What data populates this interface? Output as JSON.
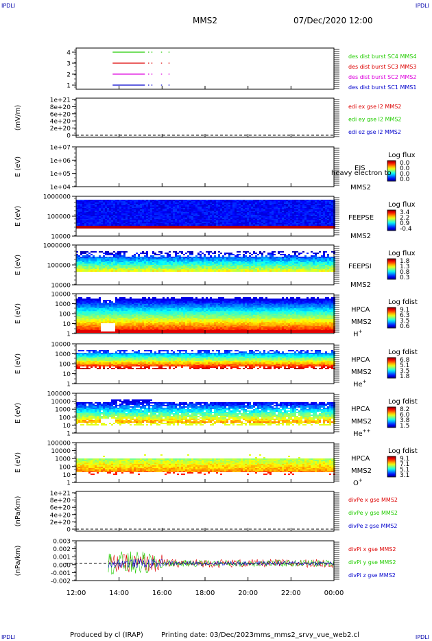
{
  "header": {
    "corner_label": "IPDLI",
    "mission": "MMS2",
    "datetime": "07/Dec/2020 12:00"
  },
  "footer": {
    "produced_by": "Produced by cl (IRAP)",
    "printing_date": "Printing date: 03/Dec/2023",
    "script_name": "mms_mms2_srvy_vue_web2.cl"
  },
  "colors": {
    "cyan_blue": "#0000cc",
    "magenta": "#dd00dd",
    "red": "#dd0000",
    "green": "#22cc00"
  },
  "chart_data": {
    "type": "multi-panel",
    "x_range": [
      "12:00",
      "00:00"
    ],
    "x_ticks": [
      "12:00",
      "14:00",
      "16:00",
      "18:00",
      "20:00",
      "22:00",
      "00:00"
    ],
    "panels": [
      {
        "type": "line",
        "yticks": [
          "4",
          "3",
          "2",
          "1"
        ],
        "ylabel": "",
        "series": [
          {
            "name": "des dist burst SC1 MMS1",
            "color": "#0000cc",
            "level": 1
          },
          {
            "name": "des dist burst SC2 MMS2",
            "color": "#dd00dd",
            "level": 2
          },
          {
            "name": "des dist burst SC3 MMS3",
            "color": "#dd0000",
            "level": 3
          },
          {
            "name": "des dist burst SC4 MMS4",
            "color": "#22cc00",
            "level": 4
          }
        ],
        "segments_hours": [
          [
            13.7,
            15.2
          ],
          [
            15.35,
            15.4
          ],
          [
            15.5,
            15.55
          ],
          [
            15.95,
            16.0
          ],
          [
            16.3,
            16.35
          ]
        ]
      },
      {
        "type": "line",
        "yticks": [
          "1e+21",
          "8e+20",
          "6e+20",
          "4e+20",
          "2e+20",
          "0"
        ],
        "ylabel": "(mV/m)",
        "series": [
          {
            "name": "edi ex gse l2 MMS2",
            "color": "#dd0000"
          },
          {
            "name": "edi ey gse l2 MMS2",
            "color": "#22cc00"
          },
          {
            "name": "edi ez gse l2 MMS2",
            "color": "#0000cc"
          }
        ],
        "dashed_zero": true
      },
      {
        "type": "heatmap",
        "yticks": [
          "1e+07",
          "1e+06",
          "1e+05",
          "1e+04"
        ],
        "ylabel": "E (eV)",
        "instrument": "EIS",
        "sub_label": "heavy electron to",
        "sc": "MMS2",
        "cb_title": "Log flux",
        "cb_ticks": [
          "0.0",
          "0.0",
          "0.0",
          "0.0"
        ],
        "empty": true
      },
      {
        "type": "heatmap",
        "yticks": [
          "1000000",
          "100000",
          "10000"
        ],
        "ylabel": "E (eV)",
        "instrument": "FEEPSE",
        "sc": "MMS2",
        "cb_title": "Log flux",
        "cb_ticks": [
          "3.4",
          "2.2",
          "0.9",
          "-0.4"
        ],
        "pattern": "feepse"
      },
      {
        "type": "heatmap",
        "yticks": [
          "1000000",
          "100000",
          "10000"
        ],
        "ylabel": "E (eV)",
        "instrument": "FEEPSI",
        "sc": "MMS2",
        "cb_title": "Log flux",
        "cb_ticks": [
          "1.8",
          "1.3",
          "0.8",
          "0.3"
        ],
        "pattern": "feepsi"
      },
      {
        "type": "heatmap",
        "yticks": [
          "10000",
          "1000",
          "100",
          "10",
          "1"
        ],
        "ylabel": "E (eV)",
        "instrument": "HPCA",
        "sc": "MMS2",
        "species": "H",
        "species_sup": "+",
        "cb_title": "Log fdist",
        "cb_ticks": [
          "9.1",
          "6.3",
          "3.5",
          "0.6"
        ],
        "pattern": "hplus"
      },
      {
        "type": "heatmap",
        "yticks": [
          "10000",
          "1000",
          "100",
          "10",
          "1"
        ],
        "ylabel": "E (eV)",
        "instrument": "HPCA",
        "sc": "MMS2",
        "species": "He",
        "species_sup": "+",
        "cb_title": "Log fdist",
        "cb_ticks": [
          "6.8",
          "5.1",
          "3.5",
          "1.8"
        ],
        "pattern": "heplus"
      },
      {
        "type": "heatmap",
        "yticks": [
          "100000",
          "10000",
          "1000",
          "100",
          "10",
          "1"
        ],
        "ylabel": "E (eV)",
        "instrument": "HPCA",
        "sc": "MMS2",
        "species": "He",
        "species_sup": "++",
        "cb_title": "Log fdist",
        "cb_ticks": [
          "8.2",
          "6.0",
          "3.8",
          "1.5"
        ],
        "pattern": "hepp"
      },
      {
        "type": "heatmap",
        "yticks": [
          "100000",
          "10000",
          "1000",
          "100",
          "10",
          "1"
        ],
        "ylabel": "E (eV)",
        "instrument": "HPCA",
        "sc": "MMS2",
        "species": "O",
        "species_sup": "+",
        "cb_title": "Log fdist",
        "cb_ticks": [
          "9.1",
          "7.1",
          "5.1",
          "3.1"
        ],
        "pattern": "oplus"
      },
      {
        "type": "line",
        "yticks": [
          "1e+21",
          "8e+20",
          "6e+20",
          "4e+20",
          "2e+20",
          "0"
        ],
        "ylabel": "(nPa/km)",
        "series": [
          {
            "name": "divPe x gse MMS2",
            "color": "#dd0000"
          },
          {
            "name": "divPe y gse MMS2",
            "color": "#22cc00"
          },
          {
            "name": "divPe z gse MMS2",
            "color": "#0000cc"
          }
        ],
        "dashed_zero": true
      },
      {
        "type": "line",
        "yticks": [
          "0.003",
          "0.002",
          "0.001",
          "0.000",
          "-0.001",
          "-0.002"
        ],
        "ylabel": "(nPa/km)",
        "ylim": [
          -0.0023,
          0.003
        ],
        "series": [
          {
            "name": "divPi x gse MMS2",
            "color": "#dd0000"
          },
          {
            "name": "divPi y gse MMS2",
            "color": "#22cc00"
          },
          {
            "name": "divPi z gse MMS2",
            "color": "#0000cc"
          }
        ],
        "dashed_zero": true,
        "data_start_hour": 13.5
      }
    ]
  }
}
